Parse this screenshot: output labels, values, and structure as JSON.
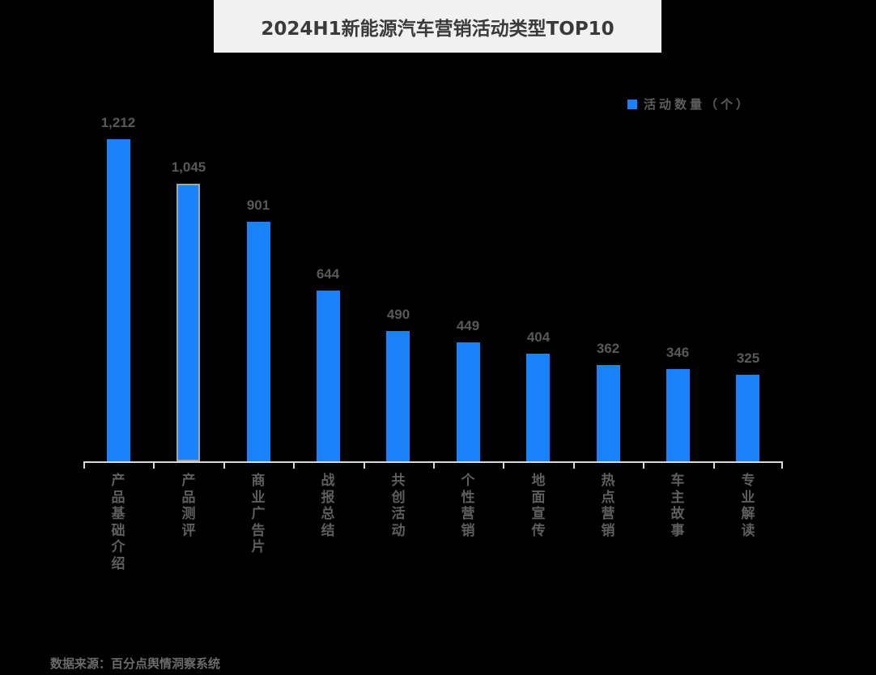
{
  "title": "2024H1新能源汽车营销活动类型TOP10",
  "legend": {
    "label": "活动数量（个）",
    "color": "#1a82fb"
  },
  "source": "数据来源：百分点舆情洞察系统",
  "colors": {
    "bar": "#1a82fb",
    "selected_border": "#a6a6a6",
    "axis": "#d9d9d9",
    "background": "#000000",
    "title_bg": "#f1f1f1"
  },
  "chart_data": {
    "type": "bar",
    "title": "2024H1新能源汽车营销活动类型TOP10",
    "xlabel": "",
    "ylabel": "",
    "categories": [
      "产品基础介绍",
      "产品测评",
      "商业广告片",
      "战报总结",
      "共创活动",
      "个性营销",
      "地面宣传",
      "热点营销",
      "车主故事",
      "专业解读"
    ],
    "series": [
      {
        "name": "活动数量（个）",
        "values": [
          1212,
          1045,
          901,
          644,
          490,
          449,
          404,
          362,
          346,
          325
        ]
      }
    ],
    "value_labels": [
      "1,212",
      "1,045",
      "901",
      "644",
      "490",
      "449",
      "404",
      "362",
      "346",
      "325"
    ],
    "ylim": [
      0,
      1212
    ],
    "grid": false,
    "legend_position": "top-right",
    "highlighted_index": 1
  }
}
